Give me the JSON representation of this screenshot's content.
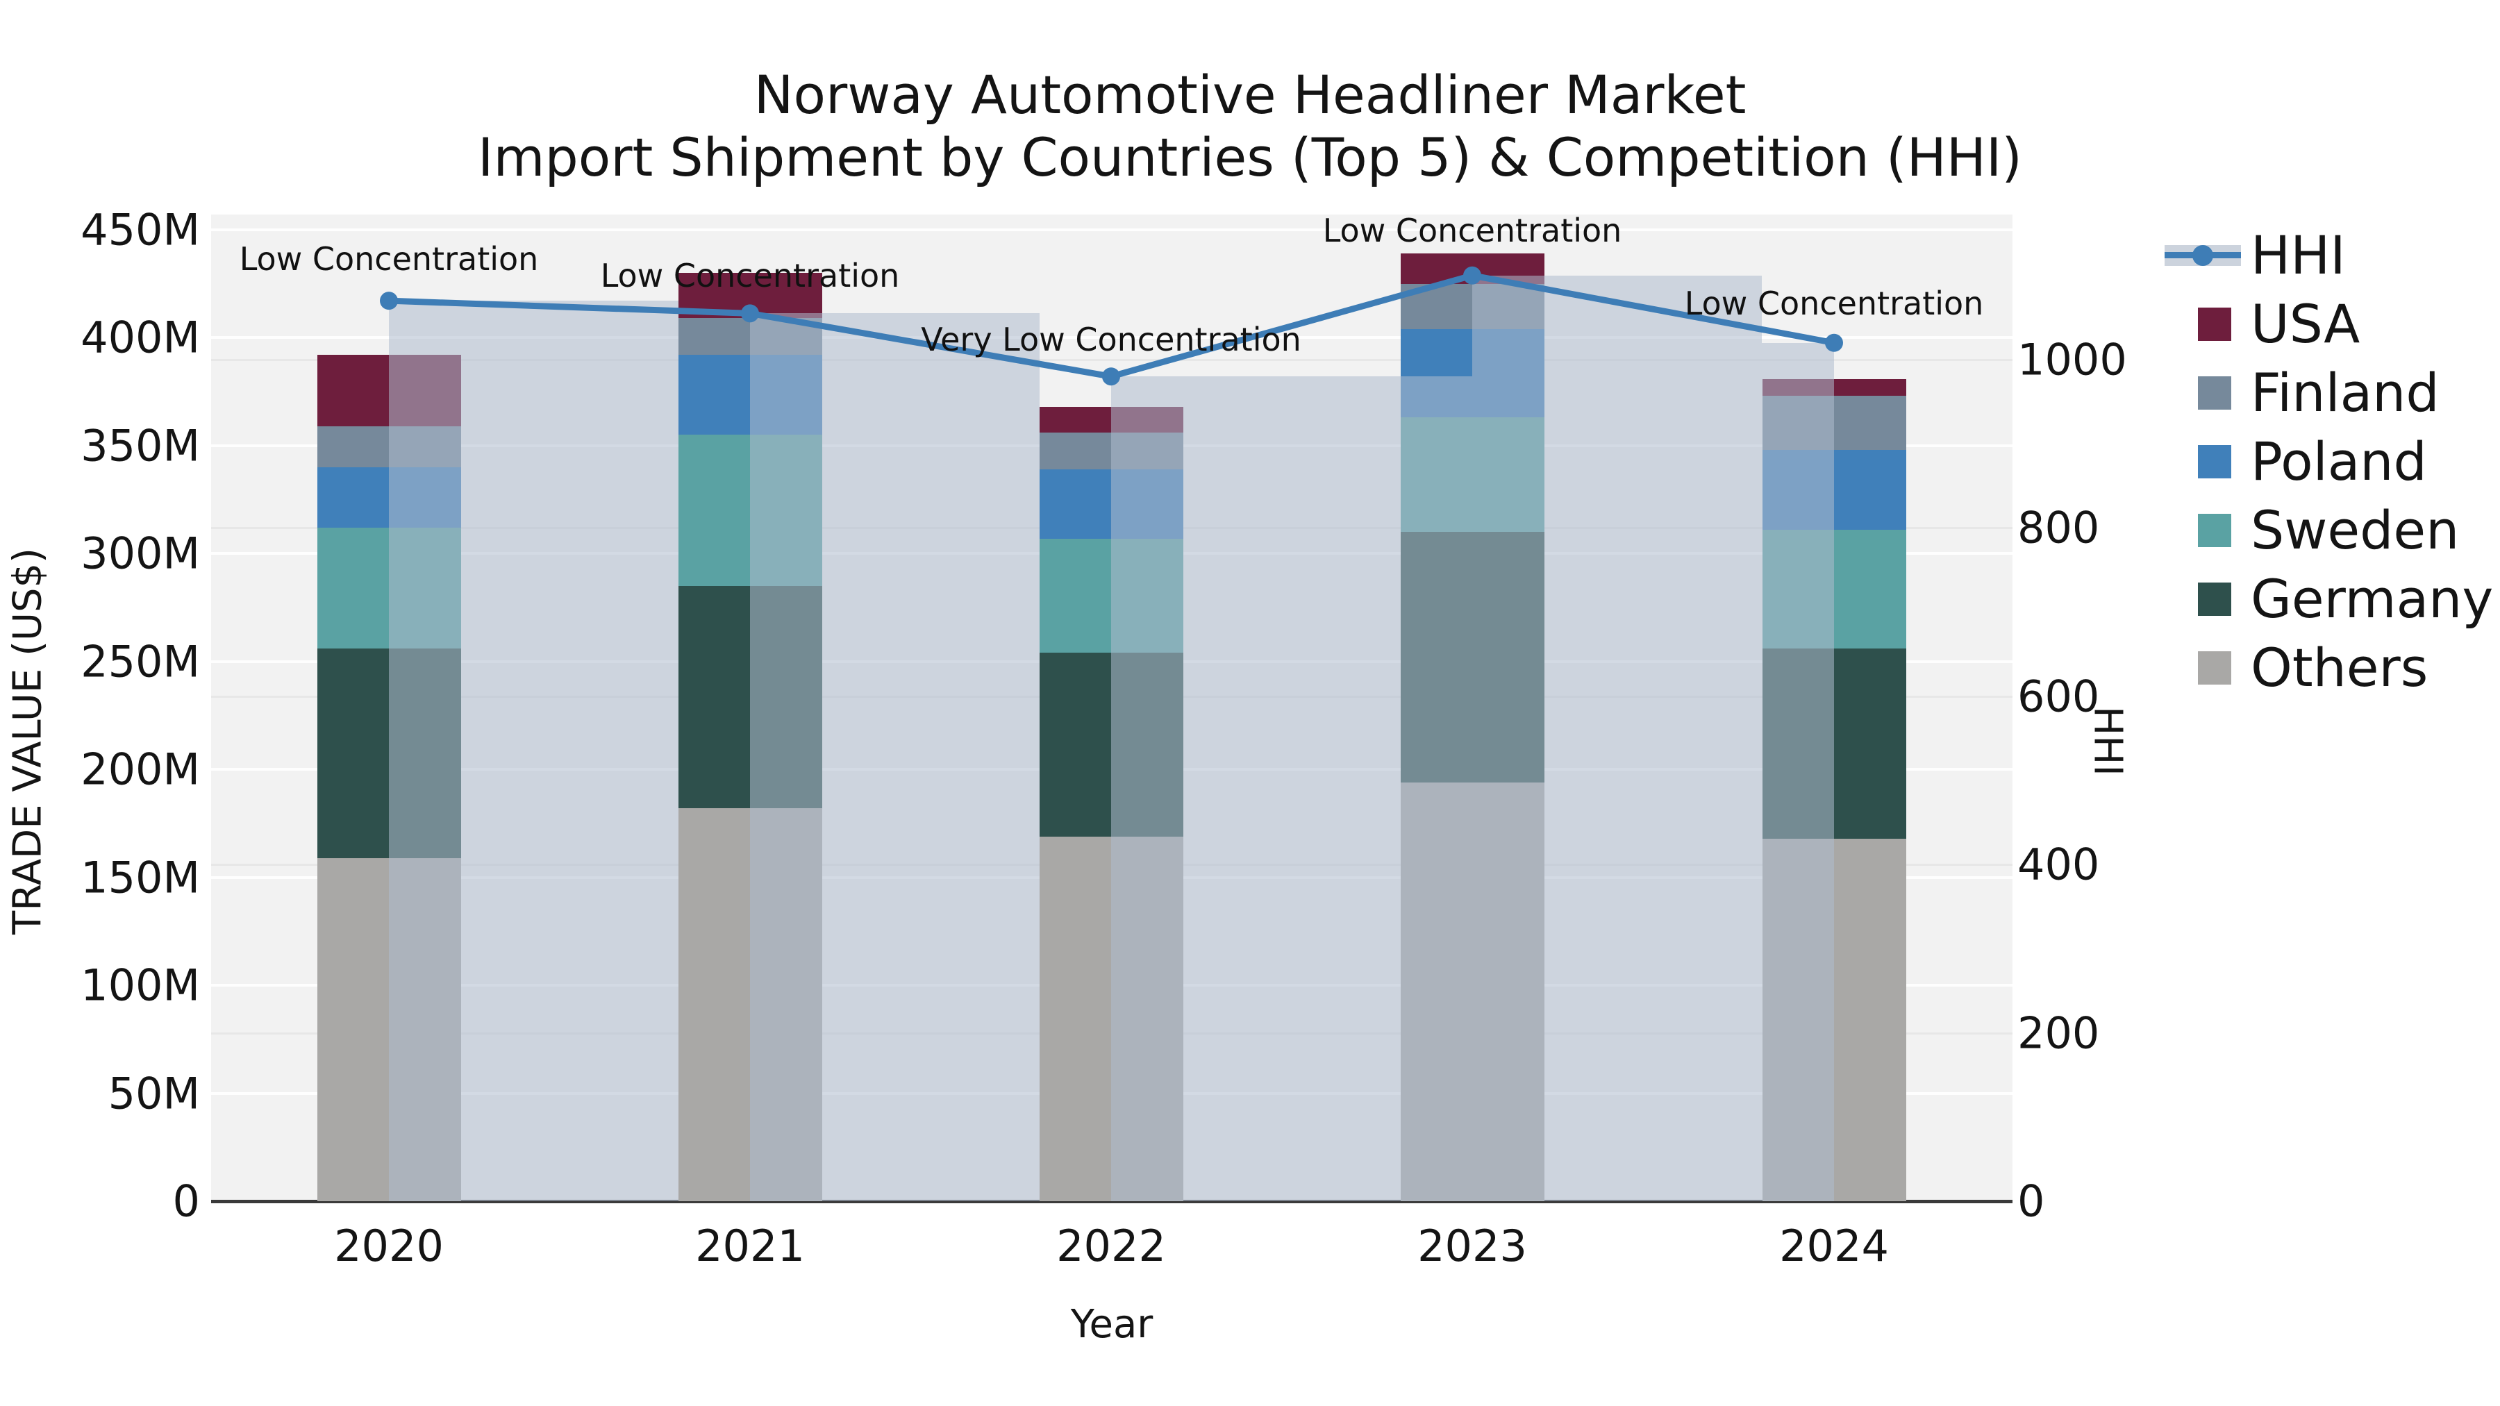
{
  "title": {
    "line1": "Norway Automotive Headliner Market",
    "line2": "Import Shipment by Countries (Top 5) & Competition (HHI)"
  },
  "axes": {
    "y_left_title": "TRADE VALUE (US$)",
    "y_right_title": "HHI",
    "x_title": "Year",
    "y_left_ticks": [
      {
        "value": 0,
        "label": "0"
      },
      {
        "value": 50,
        "label": "50M"
      },
      {
        "value": 100,
        "label": "100M"
      },
      {
        "value": 150,
        "label": "150M"
      },
      {
        "value": 200,
        "label": "200M"
      },
      {
        "value": 250,
        "label": "250M"
      },
      {
        "value": 300,
        "label": "300M"
      },
      {
        "value": 350,
        "label": "350M"
      },
      {
        "value": 400,
        "label": "400M"
      },
      {
        "value": 450,
        "label": "450M"
      }
    ],
    "y_right_ticks": [
      {
        "value": 0,
        "label": "0"
      },
      {
        "value": 200,
        "label": "200"
      },
      {
        "value": 400,
        "label": "400"
      },
      {
        "value": 600,
        "label": "600"
      },
      {
        "value": 800,
        "label": "800"
      },
      {
        "value": 1000,
        "label": "1000"
      }
    ]
  },
  "colors": {
    "plot_background": "#f2f2f2",
    "hhi_line": "#3e7db6",
    "hhi_column_overlay": "rgba(174,187,206,0.55)",
    "usa": "#6e1e3d",
    "finland": "#76899b",
    "poland": "#4080ba",
    "sweden": "#5aa2a3",
    "germany": "#2e504c",
    "others": "#a9a8a6"
  },
  "legend": {
    "entries": [
      {
        "label": "HHI",
        "type": "line",
        "color": "#3e7db6"
      },
      {
        "label": "USA",
        "type": "swatch",
        "color": "#6e1e3d"
      },
      {
        "label": "Finland",
        "type": "swatch",
        "color": "#76899b"
      },
      {
        "label": "Poland",
        "type": "swatch",
        "color": "#4080ba"
      },
      {
        "label": "Sweden",
        "type": "swatch",
        "color": "#5aa2a3"
      },
      {
        "label": "Germany",
        "type": "swatch",
        "color": "#2e504c"
      },
      {
        "label": "Others",
        "type": "swatch",
        "color": "#a9a8a6"
      }
    ]
  },
  "chart_data": {
    "type": "bar",
    "subtype": "stacked bars with dual-axis HHI line",
    "title": "Norway Automotive Headliner Market — Import Shipment by Countries (Top 5) & Competition (HHI)",
    "xlabel": "Year",
    "ylabel_left": "TRADE VALUE (US$)",
    "ylabel_right": "HHI",
    "ylim_left_M": [
      0,
      457
    ],
    "ylim_right": [
      0,
      1173
    ],
    "grid": true,
    "legend_position": "right",
    "categories": [
      "2020",
      "2021",
      "2022",
      "2023",
      "2024"
    ],
    "series": [
      {
        "name": "Others",
        "color": "#a9a8a6",
        "values_M": [
          159,
          182,
          169,
          194,
          168
        ]
      },
      {
        "name": "Germany",
        "color": "#2e504c",
        "values_M": [
          97,
          103,
          85,
          116,
          88
        ]
      },
      {
        "name": "Sweden",
        "color": "#5aa2a3",
        "values_M": [
          56,
          70,
          53,
          53,
          55
        ]
      },
      {
        "name": "Poland",
        "color": "#4080ba",
        "values_M": [
          28,
          37,
          32,
          41,
          37
        ]
      },
      {
        "name": "Finland",
        "color": "#76899b",
        "values_M": [
          19,
          17,
          17,
          21,
          25
        ]
      },
      {
        "name": "USA",
        "color": "#6e1e3d",
        "values_M": [
          33,
          21,
          12,
          14,
          8
        ]
      }
    ],
    "totals_M": [
      392,
      430,
      368,
      439,
      381
    ],
    "line": {
      "name": "HHI",
      "color": "#3e7db6",
      "values": [
        1070,
        1055,
        980,
        1100,
        1020
      ],
      "annotations": [
        {
          "year": "2020",
          "text": "Low Concentration"
        },
        {
          "year": "2021",
          "text": "Low Concentration"
        },
        {
          "year": "2022",
          "text": "Very Low Concentration"
        },
        {
          "year": "2023",
          "text": "Low Concentration"
        },
        {
          "year": "2024",
          "text": "Low Concentration"
        }
      ]
    }
  }
}
